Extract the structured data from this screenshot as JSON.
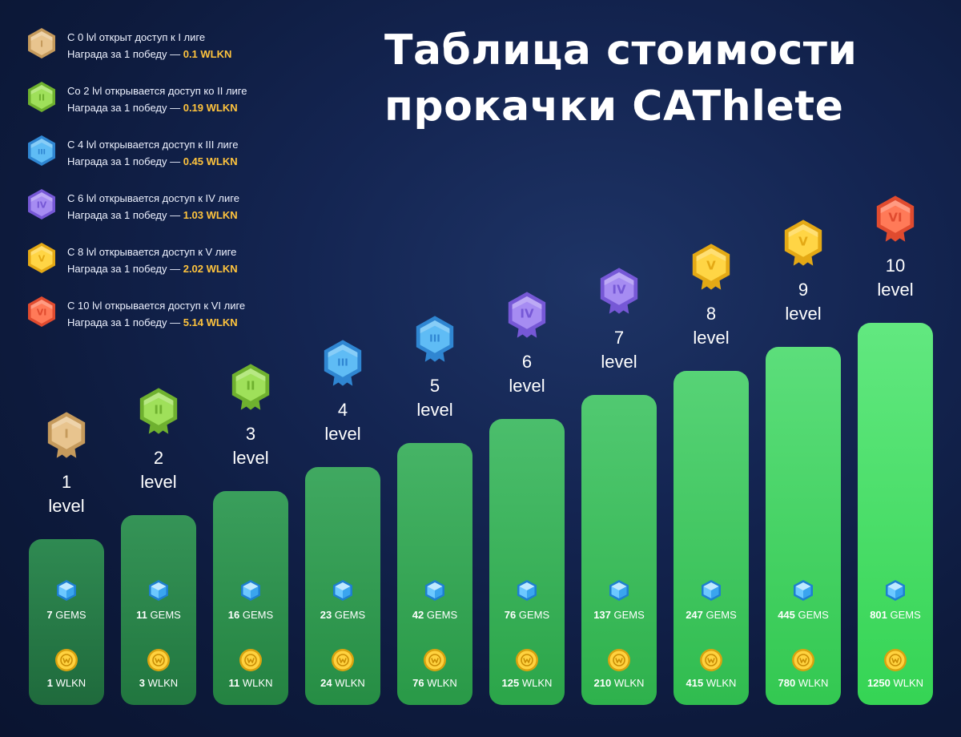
{
  "title": {
    "line1": "Таблица стоимости",
    "line2": "прокачки CAThlete"
  },
  "legend": [
    {
      "roman": "I",
      "color": "#e8c48e",
      "dark": "#c59a5c",
      "line1": "С 0 lvl открыт доступ к I лиге",
      "reward_prefix": "Награда за 1 победу — ",
      "reward": "0.1 WLKN"
    },
    {
      "roman": "II",
      "color": "#9fe05a",
      "dark": "#6fb12f",
      "line1": "Со 2 lvl открывается доступ ко II лиге",
      "reward_prefix": "Награда за 1 победу — ",
      "reward": "0.19 WLKN"
    },
    {
      "roman": "III",
      "color": "#5fbcf5",
      "dark": "#2f86d2",
      "line1": "С 4 lvl открывается доступ к III лиге",
      "reward_prefix": "Награда за 1 победу — ",
      "reward": "0.45 WLKN"
    },
    {
      "roman": "IV",
      "color": "#a68cf2",
      "dark": "#7658d6",
      "line1": "С 6 lvl открывается доступ к IV лиге",
      "reward_prefix": "Награда за 1 победу — ",
      "reward": "1.03 WLKN"
    },
    {
      "roman": "V",
      "color": "#ffd545",
      "dark": "#e4a915",
      "line1": "С 8 lvl открывается доступ к V лиге",
      "reward_prefix": "Награда за 1 победу — ",
      "reward": "2.02 WLKN"
    },
    {
      "roman": "VI",
      "color": "#ff7a58",
      "dark": "#e04b2f",
      "line1": "С 10 lvl открывается доступ к VI лиге",
      "reward_prefix": "Награда за 1 победу — ",
      "reward": "5.14 WLKN"
    }
  ],
  "chart_data": {
    "type": "bar",
    "title": "Таблица стоимости прокачки CAThlete",
    "level_word": "level",
    "gems_unit": "GEMS",
    "wlkn_unit": "WLKN",
    "categories": [
      "1",
      "2",
      "3",
      "4",
      "5",
      "6",
      "7",
      "8",
      "9",
      "10"
    ],
    "league_badges": [
      "I",
      "II",
      "II",
      "III",
      "III",
      "IV",
      "IV",
      "V",
      "V",
      "VI"
    ],
    "series": [
      {
        "name": "GEMS",
        "values": [
          7,
          11,
          16,
          23,
          42,
          76,
          137,
          247,
          445,
          801
        ]
      },
      {
        "name": "WLKN",
        "values": [
          1,
          3,
          11,
          24,
          76,
          125,
          210,
          415,
          780,
          1250
        ]
      }
    ]
  }
}
